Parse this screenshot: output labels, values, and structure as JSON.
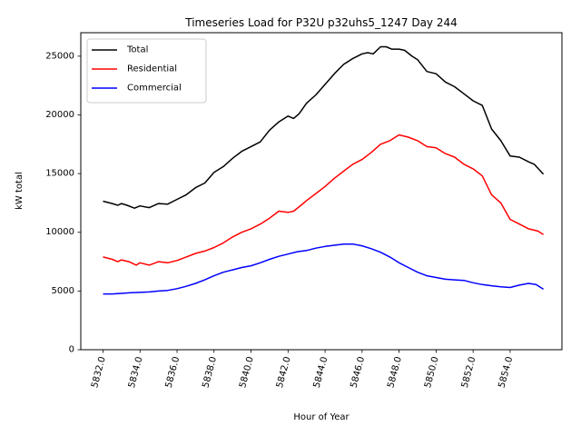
{
  "chart_data": {
    "type": "line",
    "title": "Timeseries Load for P32U p32uhs5_1247  Day 244",
    "xlabel": "Hour of Year",
    "ylabel": "kW total",
    "xlim": [
      5830.8,
      5856.8
    ],
    "ylim": [
      0,
      27000
    ],
    "xticks": [
      5832,
      5834,
      5836,
      5838,
      5840,
      5842,
      5844,
      5846,
      5848,
      5850,
      5852,
      5854
    ],
    "xtick_labels": [
      "5832.0",
      "5834.0",
      "5836.0",
      "5838.0",
      "5840.0",
      "5842.0",
      "5844.0",
      "5846.0",
      "5848.0",
      "5850.0",
      "5852.0",
      "5854.0"
    ],
    "yticks": [
      0,
      5000,
      10000,
      15000,
      20000,
      25000
    ],
    "ytick_labels": [
      "0",
      "5000",
      "10000",
      "15000",
      "20000",
      "25000"
    ],
    "legend_position": "top-left",
    "series": [
      {
        "name": "Total",
        "color": "#000000",
        "points": [
          [
            5832.0,
            12650
          ],
          [
            5832.5,
            12450
          ],
          [
            5832.8,
            12300
          ],
          [
            5833.0,
            12450
          ],
          [
            5833.3,
            12300
          ],
          [
            5833.7,
            12050
          ],
          [
            5834.0,
            12250
          ],
          [
            5834.5,
            12100
          ],
          [
            5835.0,
            12450
          ],
          [
            5835.5,
            12400
          ],
          [
            5836.0,
            12800
          ],
          [
            5836.5,
            13200
          ],
          [
            5837.0,
            13800
          ],
          [
            5837.5,
            14200
          ],
          [
            5838.0,
            15100
          ],
          [
            5838.5,
            15600
          ],
          [
            5839.0,
            16300
          ],
          [
            5839.5,
            16900
          ],
          [
            5840.0,
            17300
          ],
          [
            5840.5,
            17700
          ],
          [
            5841.0,
            18700
          ],
          [
            5841.5,
            19400
          ],
          [
            5842.0,
            19900
          ],
          [
            5842.3,
            19700
          ],
          [
            5842.6,
            20100
          ],
          [
            5843.0,
            21000
          ],
          [
            5843.5,
            21700
          ],
          [
            5844.0,
            22600
          ],
          [
            5844.5,
            23500
          ],
          [
            5845.0,
            24300
          ],
          [
            5845.5,
            24800
          ],
          [
            5846.0,
            25200
          ],
          [
            5846.3,
            25300
          ],
          [
            5846.6,
            25200
          ],
          [
            5847.0,
            25800
          ],
          [
            5847.3,
            25800
          ],
          [
            5847.6,
            25600
          ],
          [
            5848.0,
            25600
          ],
          [
            5848.3,
            25500
          ],
          [
            5848.7,
            25000
          ],
          [
            5849.0,
            24700
          ],
          [
            5849.5,
            23700
          ],
          [
            5850.0,
            23500
          ],
          [
            5850.5,
            22800
          ],
          [
            5851.0,
            22400
          ],
          [
            5851.5,
            21800
          ],
          [
            5852.0,
            21200
          ],
          [
            5852.5,
            20800
          ],
          [
            5853.0,
            18800
          ],
          [
            5853.5,
            17800
          ],
          [
            5854.0,
            16500
          ],
          [
            5854.5,
            16400
          ],
          [
            5855.0,
            16000
          ],
          [
            5855.3,
            15800
          ],
          [
            5855.8,
            14950
          ]
        ]
      },
      {
        "name": "Residential",
        "color": "#ff0000",
        "points": [
          [
            5832.0,
            7900
          ],
          [
            5832.5,
            7700
          ],
          [
            5832.8,
            7500
          ],
          [
            5833.0,
            7650
          ],
          [
            5833.4,
            7500
          ],
          [
            5833.8,
            7200
          ],
          [
            5834.0,
            7400
          ],
          [
            5834.5,
            7200
          ],
          [
            5835.0,
            7500
          ],
          [
            5835.5,
            7400
          ],
          [
            5836.0,
            7600
          ],
          [
            5836.5,
            7900
          ],
          [
            5837.0,
            8200
          ],
          [
            5837.5,
            8400
          ],
          [
            5838.0,
            8700
          ],
          [
            5838.5,
            9100
          ],
          [
            5839.0,
            9600
          ],
          [
            5839.5,
            10000
          ],
          [
            5840.0,
            10300
          ],
          [
            5840.5,
            10700
          ],
          [
            5841.0,
            11200
          ],
          [
            5841.5,
            11800
          ],
          [
            5842.0,
            11700
          ],
          [
            5842.3,
            11800
          ],
          [
            5842.7,
            12300
          ],
          [
            5843.0,
            12700
          ],
          [
            5843.5,
            13300
          ],
          [
            5844.0,
            13900
          ],
          [
            5844.5,
            14600
          ],
          [
            5845.0,
            15200
          ],
          [
            5845.5,
            15800
          ],
          [
            5846.0,
            16200
          ],
          [
            5846.5,
            16800
          ],
          [
            5847.0,
            17500
          ],
          [
            5847.5,
            17800
          ],
          [
            5848.0,
            18300
          ],
          [
            5848.5,
            18100
          ],
          [
            5849.0,
            17800
          ],
          [
            5849.5,
            17300
          ],
          [
            5850.0,
            17200
          ],
          [
            5850.5,
            16700
          ],
          [
            5851.0,
            16400
          ],
          [
            5851.5,
            15800
          ],
          [
            5852.0,
            15400
          ],
          [
            5852.5,
            14800
          ],
          [
            5853.0,
            13200
          ],
          [
            5853.5,
            12500
          ],
          [
            5854.0,
            11100
          ],
          [
            5854.5,
            10700
          ],
          [
            5855.0,
            10300
          ],
          [
            5855.5,
            10100
          ],
          [
            5855.8,
            9800
          ]
        ]
      },
      {
        "name": "Commercial",
        "color": "#0000ff",
        "points": [
          [
            5832.0,
            4750
          ],
          [
            5832.5,
            4750
          ],
          [
            5833.0,
            4800
          ],
          [
            5833.5,
            4850
          ],
          [
            5834.0,
            4880
          ],
          [
            5834.5,
            4920
          ],
          [
            5835.0,
            5000
          ],
          [
            5835.5,
            5050
          ],
          [
            5836.0,
            5200
          ],
          [
            5836.5,
            5400
          ],
          [
            5837.0,
            5650
          ],
          [
            5837.5,
            5950
          ],
          [
            5838.0,
            6300
          ],
          [
            5838.5,
            6600
          ],
          [
            5839.0,
            6800
          ],
          [
            5839.5,
            7000
          ],
          [
            5840.0,
            7150
          ],
          [
            5840.5,
            7400
          ],
          [
            5841.0,
            7700
          ],
          [
            5841.5,
            7950
          ],
          [
            5842.0,
            8150
          ],
          [
            5842.5,
            8350
          ],
          [
            5843.0,
            8450
          ],
          [
            5843.5,
            8650
          ],
          [
            5844.0,
            8800
          ],
          [
            5844.5,
            8900
          ],
          [
            5845.0,
            9000
          ],
          [
            5845.5,
            9000
          ],
          [
            5846.0,
            8850
          ],
          [
            5846.5,
            8600
          ],
          [
            5847.0,
            8300
          ],
          [
            5847.5,
            7900
          ],
          [
            5848.0,
            7400
          ],
          [
            5848.5,
            7000
          ],
          [
            5849.0,
            6600
          ],
          [
            5849.5,
            6300
          ],
          [
            5850.0,
            6150
          ],
          [
            5850.5,
            6000
          ],
          [
            5851.0,
            5950
          ],
          [
            5851.5,
            5900
          ],
          [
            5852.0,
            5700
          ],
          [
            5852.5,
            5550
          ],
          [
            5853.0,
            5450
          ],
          [
            5853.5,
            5350
          ],
          [
            5854.0,
            5300
          ],
          [
            5854.5,
            5500
          ],
          [
            5855.0,
            5650
          ],
          [
            5855.4,
            5550
          ],
          [
            5855.8,
            5150
          ]
        ]
      }
    ]
  }
}
